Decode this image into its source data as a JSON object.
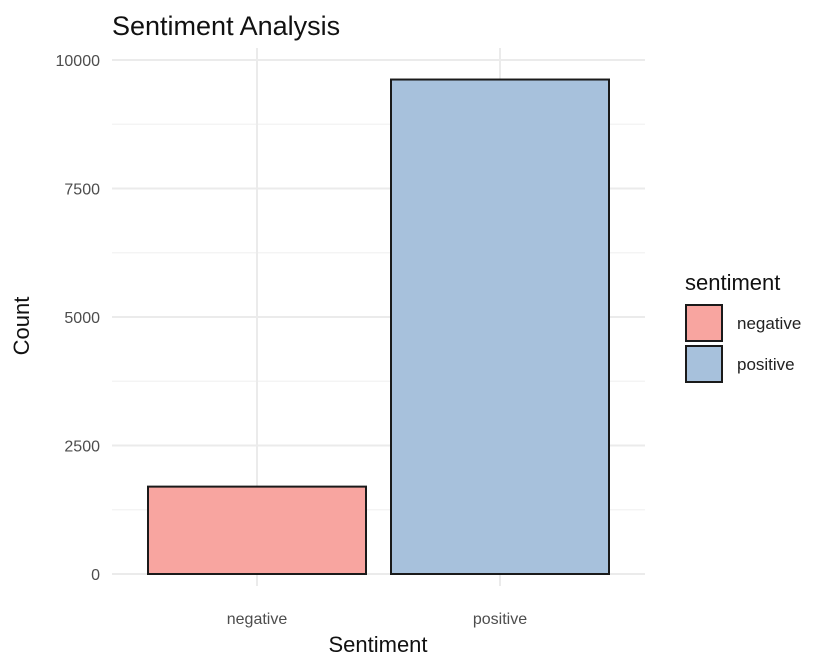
{
  "chart_data": {
    "type": "bar",
    "title": "Sentiment Analysis",
    "xlabel": "Sentiment",
    "ylabel": "Count",
    "categories": [
      "negative",
      "positive"
    ],
    "values": [
      1700,
      9620
    ],
    "colors": [
      "#f8a5a0",
      "#a7c1dc"
    ],
    "ylim": [
      0,
      10000
    ],
    "yticks": [
      0,
      2500,
      5000,
      7500,
      10000
    ],
    "grid": true,
    "legend": {
      "title": "sentiment",
      "placement": "right",
      "entries": [
        "negative",
        "positive"
      ]
    }
  }
}
